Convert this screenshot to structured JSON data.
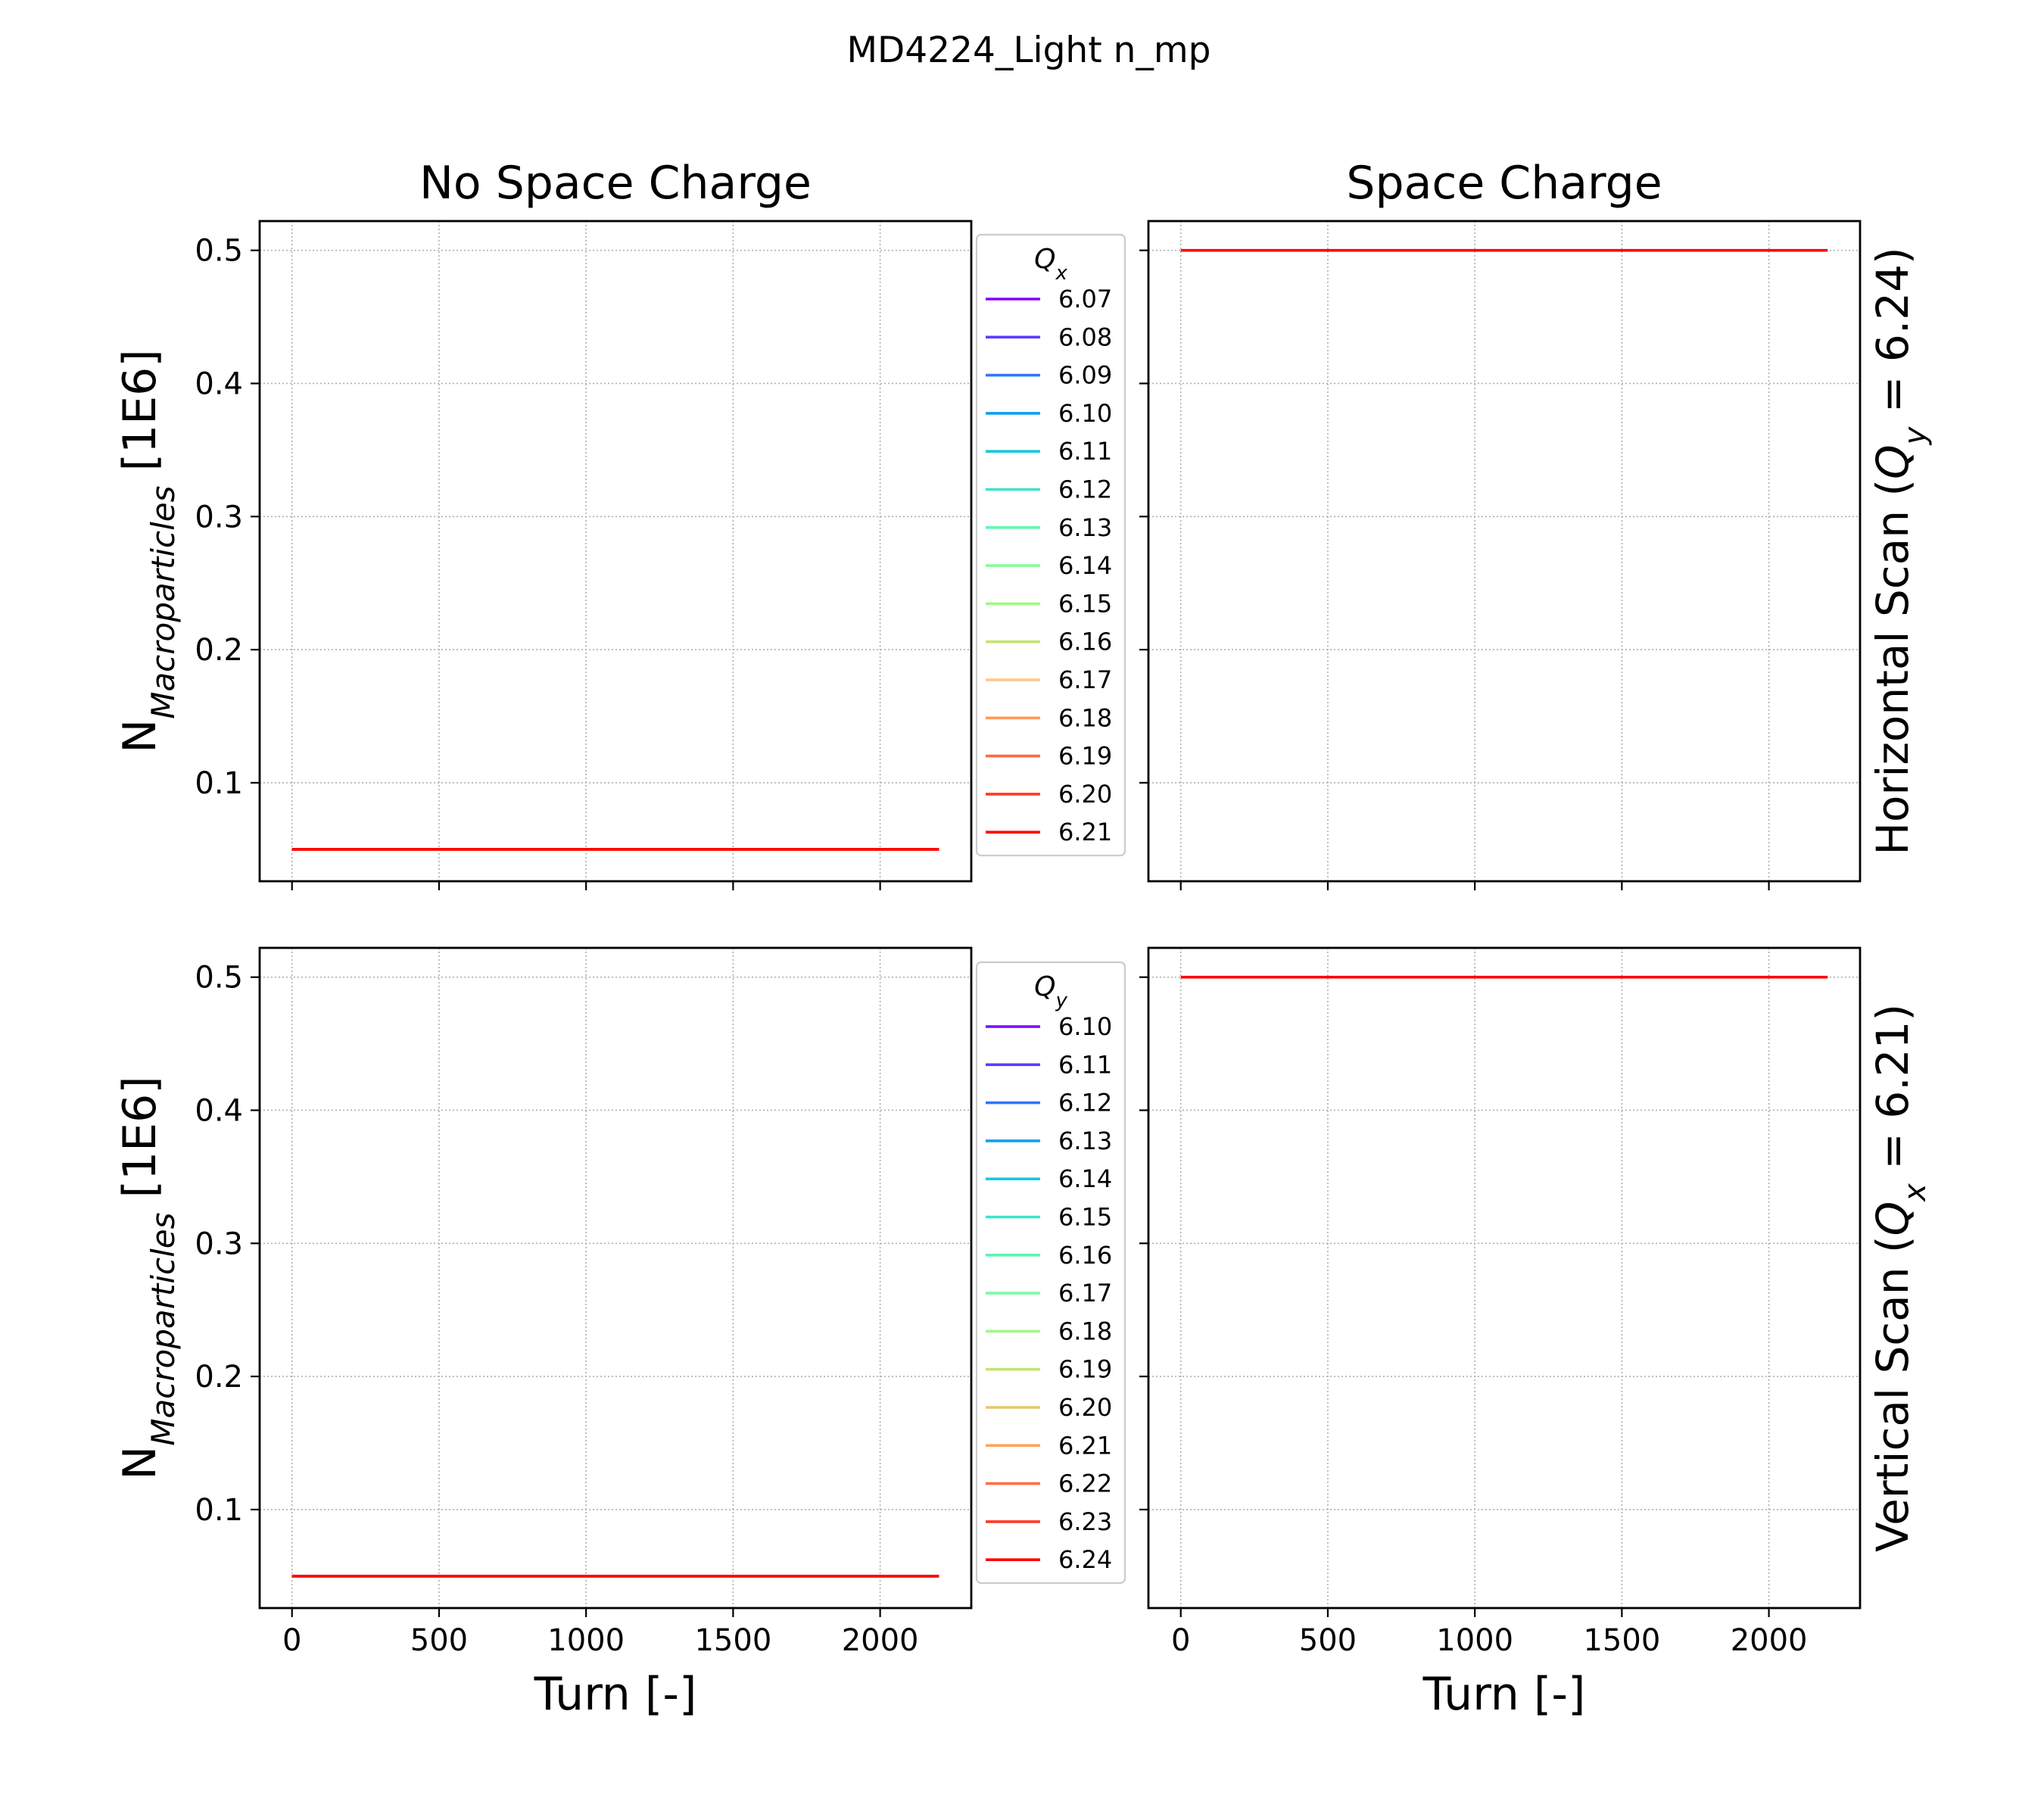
{
  "suptitle": "MD4224_Light n_mp",
  "col_titles": [
    "No Space Charge",
    "Space Charge"
  ],
  "row_labels": [
    {
      "prefix": "Horizontal Scan (",
      "var": "Q",
      "sub": "y",
      "suffix": " = 6.24)"
    },
    {
      "prefix": "Vertical Scan (",
      "var": "Q",
      "sub": "x",
      "suffix": " = 6.21)"
    }
  ],
  "ylabel": {
    "main": "N",
    "sub": "Macroparticles",
    "unit": " [1E6]"
  },
  "xlabel": "Turn [-]",
  "legend_titles": [
    {
      "var": "Q",
      "sub": "x"
    },
    {
      "var": "Q",
      "sub": "y"
    }
  ],
  "grid": true,
  "chart_data": [
    {
      "type": "line",
      "row": 0,
      "col": 0,
      "title": "No Space Charge",
      "xlabel": "",
      "ylabel": "N_Macroparticles [1E6]",
      "xlim": [
        -110,
        2310
      ],
      "ylim": [
        0.026,
        0.522
      ],
      "xticks": [
        0,
        500,
        1000,
        1500,
        2000
      ],
      "yticks": [
        0.1,
        0.2,
        0.3,
        0.4,
        0.5
      ],
      "legend": {
        "title": "Q_x",
        "placement": "right-outside"
      },
      "series": [
        {
          "name": "6.07",
          "color": "#8000ff",
          "x": [
            0,
            2200
          ],
          "y": [
            0.05,
            0.05
          ]
        },
        {
          "name": "6.08",
          "color": "#5a3cfe",
          "x": [
            0,
            2200
          ],
          "y": [
            0.05,
            0.05
          ]
        },
        {
          "name": "6.09",
          "color": "#3176f8",
          "x": [
            0,
            2200
          ],
          "y": [
            0.05,
            0.05
          ]
        },
        {
          "name": "6.10",
          "color": "#0ba2ec",
          "x": [
            0,
            2200
          ],
          "y": [
            0.05,
            0.05
          ]
        },
        {
          "name": "6.11",
          "color": "#17c9dc",
          "x": [
            0,
            2200
          ],
          "y": [
            0.05,
            0.05
          ]
        },
        {
          "name": "6.12",
          "color": "#3be5ca",
          "x": [
            0,
            2200
          ],
          "y": [
            0.05,
            0.05
          ]
        },
        {
          "name": "6.13",
          "color": "#63f7b4",
          "x": [
            0,
            2200
          ],
          "y": [
            0.05,
            0.05
          ]
        },
        {
          "name": "6.14",
          "color": "#86fc9b",
          "x": [
            0,
            2200
          ],
          "y": [
            0.05,
            0.05
          ]
        },
        {
          "name": "6.15",
          "color": "#a0f884",
          "x": [
            0,
            2200
          ],
          "y": [
            0.05,
            0.05
          ]
        },
        {
          "name": "6.16",
          "color": "#c4e56e",
          "x": [
            0,
            2200
          ],
          "y": [
            0.05,
            0.05
          ]
        },
        {
          "name": "6.17",
          "color": "#ffc68a",
          "x": [
            0,
            2200
          ],
          "y": [
            0.05,
            0.05
          ]
        },
        {
          "name": "6.18",
          "color": "#ff9c5a",
          "x": [
            0,
            2200
          ],
          "y": [
            0.05,
            0.05
          ]
        },
        {
          "name": "6.19",
          "color": "#ff6a42",
          "x": [
            0,
            2200
          ],
          "y": [
            0.05,
            0.05
          ]
        },
        {
          "name": "6.20",
          "color": "#ff3a24",
          "x": [
            0,
            2200
          ],
          "y": [
            0.05,
            0.05
          ]
        },
        {
          "name": "6.21",
          "color": "#ff0000",
          "x": [
            0,
            2200
          ],
          "y": [
            0.05,
            0.05
          ]
        }
      ]
    },
    {
      "type": "line",
      "row": 0,
      "col": 1,
      "title": "Space Charge",
      "xlabel": "",
      "ylabel": "",
      "xlim": [
        -110,
        2310
      ],
      "ylim": [
        0.026,
        0.522
      ],
      "xticks": [
        0,
        500,
        1000,
        1500,
        2000
      ],
      "yticks": [
        0.1,
        0.2,
        0.3,
        0.4,
        0.5
      ],
      "series": [
        {
          "name": "6.21",
          "color": "#ff0000",
          "x": [
            0,
            2200
          ],
          "y": [
            0.5,
            0.5
          ]
        }
      ]
    },
    {
      "type": "line",
      "row": 1,
      "col": 0,
      "title": "",
      "xlabel": "Turn [-]",
      "ylabel": "N_Macroparticles [1E6]",
      "xlim": [
        -110,
        2310
      ],
      "ylim": [
        0.026,
        0.522
      ],
      "xticks": [
        0,
        500,
        1000,
        1500,
        2000
      ],
      "yticks": [
        0.1,
        0.2,
        0.3,
        0.4,
        0.5
      ],
      "legend": {
        "title": "Q_y",
        "placement": "right-outside"
      },
      "series": [
        {
          "name": "6.10",
          "color": "#8000ff",
          "x": [
            0,
            2200
          ],
          "y": [
            0.05,
            0.05
          ]
        },
        {
          "name": "6.11",
          "color": "#5a3cfe",
          "x": [
            0,
            2200
          ],
          "y": [
            0.05,
            0.05
          ]
        },
        {
          "name": "6.12",
          "color": "#3176f8",
          "x": [
            0,
            2200
          ],
          "y": [
            0.05,
            0.05
          ]
        },
        {
          "name": "6.13",
          "color": "#0ba2ec",
          "x": [
            0,
            2200
          ],
          "y": [
            0.05,
            0.05
          ]
        },
        {
          "name": "6.14",
          "color": "#17c9dc",
          "x": [
            0,
            2200
          ],
          "y": [
            0.05,
            0.05
          ]
        },
        {
          "name": "6.15",
          "color": "#3be5ca",
          "x": [
            0,
            2200
          ],
          "y": [
            0.05,
            0.05
          ]
        },
        {
          "name": "6.16",
          "color": "#5ef2b8",
          "x": [
            0,
            2200
          ],
          "y": [
            0.05,
            0.05
          ]
        },
        {
          "name": "6.17",
          "color": "#7ffaa6",
          "x": [
            0,
            2200
          ],
          "y": [
            0.05,
            0.05
          ]
        },
        {
          "name": "6.18",
          "color": "#a0f884",
          "x": [
            0,
            2200
          ],
          "y": [
            0.05,
            0.05
          ]
        },
        {
          "name": "6.19",
          "color": "#c4e56e",
          "x": [
            0,
            2200
          ],
          "y": [
            0.05,
            0.05
          ]
        },
        {
          "name": "6.20",
          "color": "#e4c86a",
          "x": [
            0,
            2200
          ],
          "y": [
            0.05,
            0.05
          ]
        },
        {
          "name": "6.21",
          "color": "#ffa256",
          "x": [
            0,
            2200
          ],
          "y": [
            0.05,
            0.05
          ]
        },
        {
          "name": "6.22",
          "color": "#ff6e42",
          "x": [
            0,
            2200
          ],
          "y": [
            0.05,
            0.05
          ]
        },
        {
          "name": "6.23",
          "color": "#ff3a24",
          "x": [
            0,
            2200
          ],
          "y": [
            0.05,
            0.05
          ]
        },
        {
          "name": "6.24",
          "color": "#ff0000",
          "x": [
            0,
            2200
          ],
          "y": [
            0.05,
            0.05
          ]
        }
      ]
    },
    {
      "type": "line",
      "row": 1,
      "col": 1,
      "title": "",
      "xlabel": "Turn [-]",
      "ylabel": "",
      "xlim": [
        -110,
        2310
      ],
      "ylim": [
        0.026,
        0.522
      ],
      "xticks": [
        0,
        500,
        1000,
        1500,
        2000
      ],
      "yticks": [
        0.1,
        0.2,
        0.3,
        0.4,
        0.5
      ],
      "series": [
        {
          "name": "6.24",
          "color": "#ff0000",
          "x": [
            0,
            2200
          ],
          "y": [
            0.5,
            0.5
          ]
        }
      ]
    }
  ]
}
